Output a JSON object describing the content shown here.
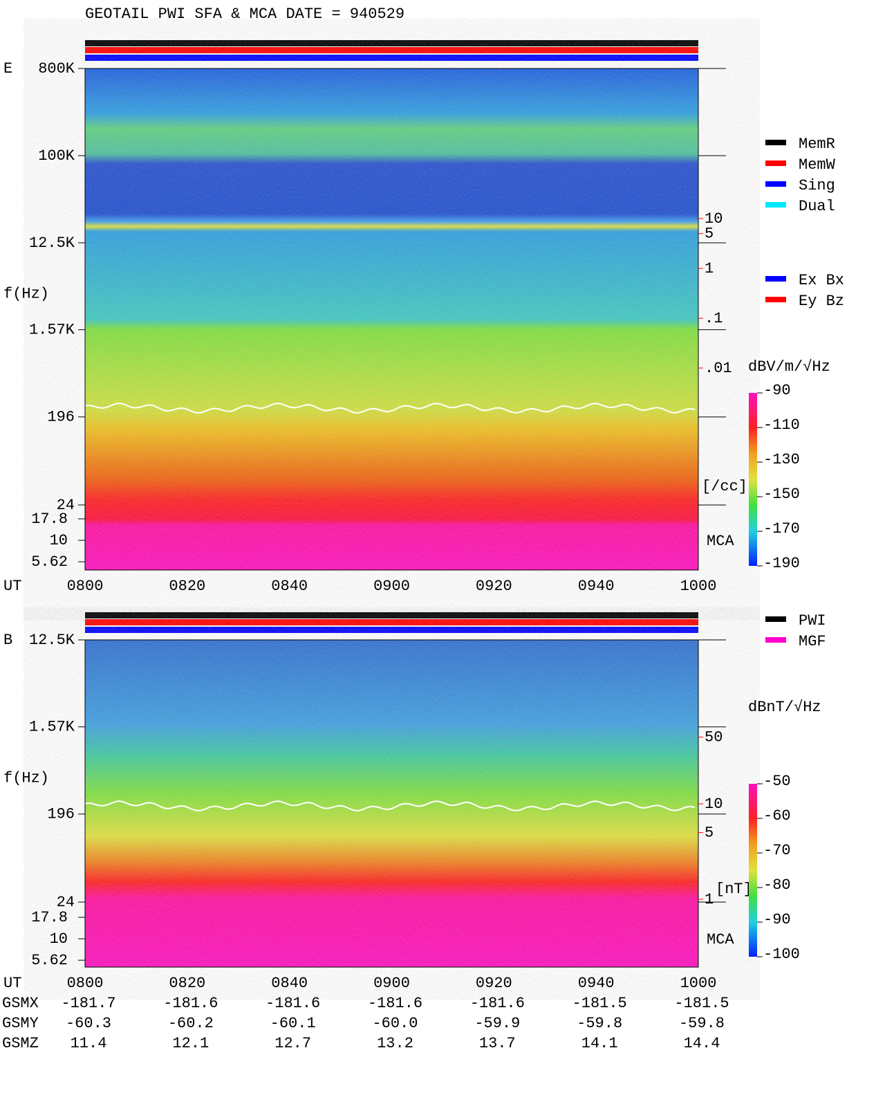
{
  "header": {
    "title": "GEOTAIL  PWI SFA & MCA   DATE = 940529"
  },
  "chart_data": [
    {
      "type": "spectrogram",
      "panel_label": "E",
      "y_label": "f(Hz)",
      "x_label": "UT",
      "x": [
        "0800",
        "0820",
        "0840",
        "0900",
        "0920",
        "0940",
        "1000"
      ],
      "ylog": true,
      "yticks": [
        {
          "value": 800000,
          "label": "800K"
        },
        {
          "value": 100000,
          "label": "100K"
        },
        {
          "value": 12500,
          "label": "12.5K"
        },
        {
          "value": 1570,
          "label": "1.57K"
        },
        196,
        24
      ],
      "mca_yticks": [
        17.8,
        10,
        5.62
      ],
      "mca_label": "MCA",
      "legend": [
        {
          "name": "MemR",
          "color": "#000000"
        },
        {
          "name": "MemW",
          "color": "#ff0000"
        },
        {
          "name": "Sing",
          "color": "#0000ff"
        },
        {
          "name": "Dual",
          "color": "#00e8ff"
        }
      ],
      "legend2": [
        {
          "name": "Ex Bx",
          "color": "#0000ff"
        },
        {
          "name": "Ey Bz",
          "color": "#ff0000"
        }
      ],
      "density_axis": {
        "label": "[/cc]",
        "color": "#ff0000",
        "ticks": [
          10,
          5,
          1,
          {
            "value": 0.1,
            "label": ".1"
          },
          {
            "value": 0.01,
            "label": ".01"
          }
        ]
      },
      "colorbar": {
        "label": "dBV/m/√Hz",
        "ticks": [
          -90,
          -110,
          -130,
          -150,
          -170,
          -190
        ]
      }
    },
    {
      "type": "spectrogram",
      "panel_label": "B",
      "y_label": "f(Hz)",
      "x_label": "UT",
      "x": [
        "0800",
        "0820",
        "0840",
        "0900",
        "0920",
        "0940",
        "1000"
      ],
      "ylog": true,
      "yticks": [
        {
          "value": 12500,
          "label": "12.5K"
        },
        {
          "value": 1570,
          "label": "1.57K"
        },
        196,
        24
      ],
      "mca_yticks": [
        17.8,
        10,
        5.62
      ],
      "mca_label": "MCA",
      "legend": [
        {
          "name": "PWI",
          "color": "#000000"
        },
        {
          "name": "MGF",
          "color": "#ff00cc"
        }
      ],
      "density_axis": {
        "label": "[nT]",
        "color": "#ff0000",
        "ticks": [
          50,
          10,
          5,
          1
        ]
      },
      "colorbar": {
        "label": "dBnT/√Hz",
        "ticks": [
          -50,
          -60,
          -70,
          -80,
          -90,
          -100
        ]
      },
      "ephemeris": [
        {
          "name": "GSMX",
          "values": [
            -181.7,
            -181.6,
            -181.6,
            -181.6,
            -181.6,
            -181.5,
            -181.5
          ]
        },
        {
          "name": "GSMY",
          "values": [
            -60.3,
            -60.2,
            -60.1,
            {
              "value": -60,
              "label": "-60.0"
            },
            -59.9,
            -59.8,
            -59.8
          ]
        },
        {
          "name": "GSMZ",
          "values": [
            11.4,
            12.1,
            12.7,
            13.2,
            13.7,
            14.1,
            14.4
          ]
        }
      ]
    }
  ]
}
